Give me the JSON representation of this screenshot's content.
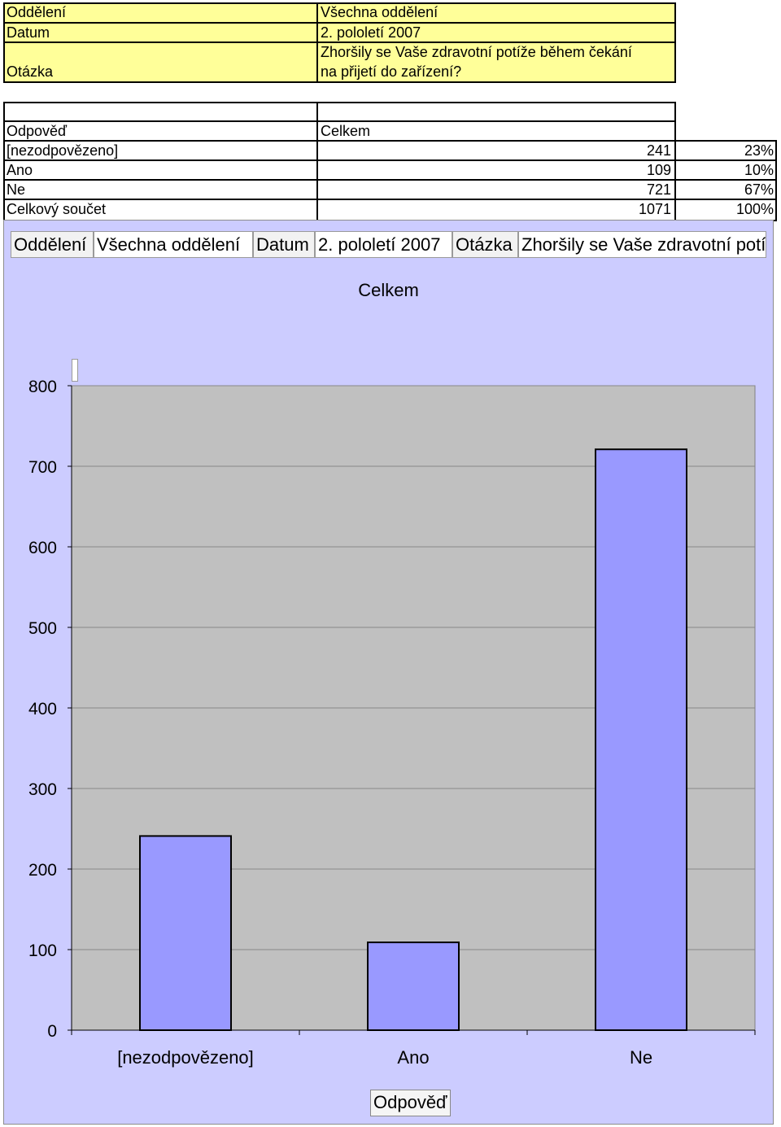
{
  "header_table": {
    "rows": [
      {
        "label": "Oddělení",
        "value": "Všechna oddělení"
      },
      {
        "label": "Datum",
        "value": "2. pololetí 2007"
      },
      {
        "label": "Otázka",
        "value_line1": "Zhoršily se Vaše zdravotní potíže během čekání",
        "value_line2": "na přijetí do zařízení?"
      }
    ]
  },
  "data_table": {
    "col_header_label": "Odpověď",
    "col_header_value": "Celkem",
    "rows": [
      {
        "label": "[nezodpovězeno]",
        "count": "241",
        "percent": "23%"
      },
      {
        "label": "Ano",
        "count": "109",
        "percent": "10%"
      },
      {
        "label": "Ne",
        "count": "721",
        "percent": "67%"
      },
      {
        "label": "Celkový součet",
        "count": "1071",
        "percent": "100%"
      }
    ]
  },
  "page_fields": [
    {
      "label": "Oddělení",
      "value": "Všechna oddělení"
    },
    {
      "label": "Datum",
      "value": "2. pololetí 2007"
    },
    {
      "label": "Otázka",
      "value": "Zhoršily se Vaše zdravotní potíže během čekání na přijetí do zařízení?"
    }
  ],
  "chart_data": {
    "type": "bar",
    "title": "Celkem",
    "xlabel": "Odpověď",
    "ylabel": "",
    "categories": [
      "[nezodpovězeno]",
      "Ano",
      "Ne"
    ],
    "values": [
      241,
      109,
      721
    ],
    "ylim": [
      0,
      800
    ],
    "yticks": [
      0,
      100,
      200,
      300,
      400,
      500,
      600,
      700,
      800
    ],
    "grid": true,
    "colors": {
      "bar": "#9999ff",
      "plot_bg": "#c0c0c0",
      "panel_bg": "#ccccff"
    }
  }
}
